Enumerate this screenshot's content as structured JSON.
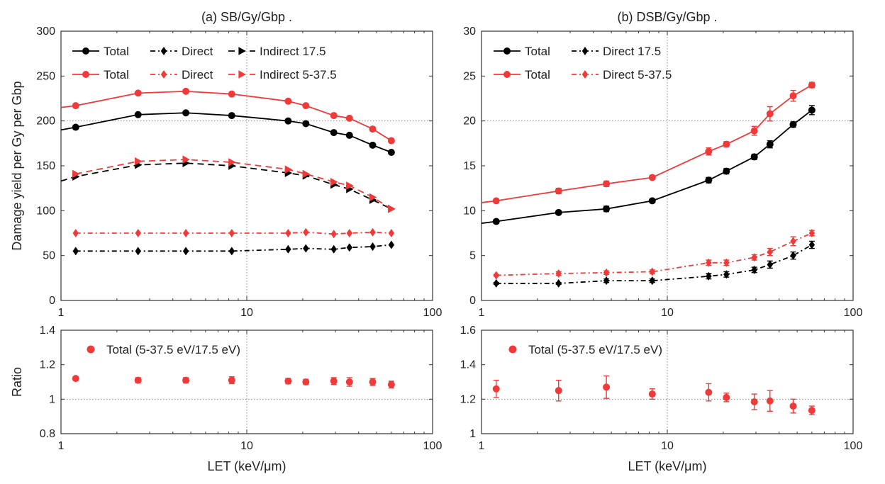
{
  "colors": {
    "black": "#000000",
    "red": "#f03a3a",
    "grid": "#8a8a8a"
  },
  "chart_data": [
    {
      "id": "a_top",
      "type": "line",
      "title": "(a) SB/Gy/Gbp .",
      "xlabel": "",
      "ylabel": "Damage yield per Gy per Gbp",
      "xscale": "log",
      "xlim": [
        1,
        100
      ],
      "ylim": [
        0,
        300
      ],
      "xticks": [
        "1",
        "10",
        "100"
      ],
      "yticks": [
        "0",
        "50",
        "100",
        "150",
        "200",
        "250",
        "300"
      ],
      "grid": "x=10 and y=200 dotted",
      "legend": [
        "Total",
        "Direct",
        "Indirect  17.5",
        "Total",
        "Direct",
        "Indirect  5-37.5"
      ],
      "x": [
        1.2,
        2.6,
        4.7,
        8.3,
        16.7,
        20.8,
        29.4,
        35.7,
        47.6,
        60
      ],
      "series": [
        {
          "name": "Total",
          "color": "black",
          "marker": "circle",
          "dash": "solid",
          "x0": 1.0,
          "y0": 190,
          "values": [
            193,
            207,
            209,
            206,
            200,
            197,
            187,
            184,
            173,
            165
          ]
        },
        {
          "name": "Direct",
          "color": "black",
          "marker": "diamond",
          "dash": "dashdot",
          "values": [
            55,
            55,
            55,
            55,
            57,
            58,
            57,
            59,
            60,
            62
          ]
        },
        {
          "name": "Indirect",
          "color": "black",
          "marker": "triangle",
          "dash": "dashed",
          "x0": 1.0,
          "y0": 133,
          "values": [
            138,
            151,
            153,
            150,
            142,
            139,
            129,
            124,
            112,
            102
          ]
        },
        {
          "name": "Total",
          "color": "red",
          "marker": "circle",
          "dash": "solid",
          "x0": 1.0,
          "y0": 215,
          "values": [
            217,
            231,
            233,
            230,
            222,
            217,
            206,
            203,
            191,
            178
          ]
        },
        {
          "name": "Direct",
          "color": "red",
          "marker": "diamond",
          "dash": "dashdot",
          "values": [
            75,
            75,
            75,
            75,
            75,
            76,
            74,
            75,
            76,
            75
          ]
        },
        {
          "name": "Indirect",
          "color": "red",
          "marker": "triangle",
          "dash": "dashed",
          "values": [
            141,
            155,
            157,
            154,
            146,
            141,
            132,
            128,
            115,
            102
          ]
        }
      ]
    },
    {
      "id": "b_top",
      "type": "line",
      "title": "(b) DSB/Gy/Gbp .",
      "xlabel": "",
      "ylabel": "",
      "xscale": "log",
      "xlim": [
        1,
        100
      ],
      "ylim": [
        0,
        30
      ],
      "xticks": [
        "1",
        "10",
        "100"
      ],
      "yticks": [
        "0",
        "5",
        "10",
        "15",
        "20",
        "25",
        "30"
      ],
      "grid": "x=10 and y=20 dotted",
      "legend": [
        "Total",
        "Direct  17.5",
        "Total",
        "Direct  5-37.5"
      ],
      "x": [
        1.2,
        2.6,
        4.7,
        8.3,
        16.7,
        20.8,
        29.4,
        35.7,
        47.6,
        60
      ],
      "series": [
        {
          "name": "Total",
          "color": "black",
          "marker": "circle",
          "dash": "solid",
          "x0": 1.0,
          "y0": 8.6,
          "values": [
            8.8,
            9.8,
            10.2,
            11.1,
            13.4,
            14.4,
            16.0,
            17.4,
            19.6,
            21.2
          ],
          "err": [
            0.2,
            0.2,
            0.3,
            0.2,
            0.3,
            0.3,
            0.3,
            0.4,
            0.3,
            0.5
          ]
        },
        {
          "name": "Direct",
          "color": "black",
          "marker": "diamond",
          "dash": "dashdot",
          "values": [
            1.9,
            1.9,
            2.2,
            2.2,
            2.7,
            2.9,
            3.4,
            4.0,
            5.0,
            6.2
          ],
          "err": [
            0.1,
            0.1,
            0.2,
            0.2,
            0.3,
            0.3,
            0.3,
            0.4,
            0.4,
            0.4
          ]
        },
        {
          "name": "Total",
          "color": "red",
          "marker": "circle",
          "dash": "solid",
          "x0": 1.0,
          "y0": 10.9,
          "values": [
            11.1,
            12.2,
            13.0,
            13.7,
            16.6,
            17.4,
            18.9,
            20.8,
            22.8,
            24.0
          ],
          "err": [
            0.2,
            0.3,
            0.3,
            0.2,
            0.4,
            0.3,
            0.5,
            0.8,
            0.6,
            0.3
          ]
        },
        {
          "name": "Direct",
          "color": "red",
          "marker": "diamond",
          "dash": "dashdot",
          "values": [
            2.8,
            3.0,
            3.1,
            3.2,
            4.2,
            4.2,
            4.8,
            5.4,
            6.6,
            7.5
          ],
          "err": [
            0.1,
            0.2,
            0.2,
            0.2,
            0.3,
            0.3,
            0.3,
            0.4,
            0.5,
            0.3
          ]
        }
      ]
    },
    {
      "id": "a_bottom",
      "type": "scatter",
      "title": "",
      "xlabel": "LET (keV/μm)",
      "ylabel": "Ratio",
      "xscale": "log",
      "xlim": [
        1,
        100
      ],
      "ylim": [
        0.8,
        1.4
      ],
      "xticks": [
        "1",
        "10",
        "100"
      ],
      "yticks": [
        "0.8",
        "1",
        "1.2",
        "1.4"
      ],
      "grid": "x=10 and y=1 dotted",
      "legend": [
        "Total (5-37.5 eV/17.5 eV)"
      ],
      "x": [
        1.2,
        2.6,
        4.7,
        8.3,
        16.7,
        20.8,
        29.4,
        35.7,
        47.6,
        60
      ],
      "series": [
        {
          "name": "Total (5-37.5 eV/17.5 eV)",
          "color": "red",
          "marker": "circle",
          "values": [
            1.12,
            1.11,
            1.11,
            1.11,
            1.105,
            1.1,
            1.105,
            1.1,
            1.1,
            1.085
          ],
          "err": [
            0.01,
            0.015,
            0.015,
            0.02,
            0.015,
            0.015,
            0.02,
            0.025,
            0.02,
            0.02
          ]
        }
      ]
    },
    {
      "id": "b_bottom",
      "type": "scatter",
      "title": "",
      "xlabel": "LET (keV/μm)",
      "ylabel": "",
      "xscale": "log",
      "xlim": [
        1,
        100
      ],
      "ylim": [
        1,
        1.6
      ],
      "xticks": [
        "1",
        "10",
        "100"
      ],
      "yticks": [
        "1",
        "1.2",
        "1.4",
        "1.6"
      ],
      "grid": "x=10 and y=1.2 dotted",
      "legend": [
        "Total (5-37.5 eV/17.5 eV)"
      ],
      "x": [
        1.2,
        2.6,
        4.7,
        8.3,
        16.7,
        20.8,
        29.4,
        35.7,
        47.6,
        60
      ],
      "series": [
        {
          "name": "Total (5-37.5 eV/17.5 eV)",
          "color": "red",
          "marker": "circle",
          "values": [
            1.26,
            1.25,
            1.27,
            1.23,
            1.24,
            1.21,
            1.185,
            1.19,
            1.16,
            1.135
          ],
          "err": [
            0.05,
            0.06,
            0.065,
            0.03,
            0.05,
            0.025,
            0.045,
            0.06,
            0.04,
            0.025
          ]
        }
      ]
    }
  ]
}
